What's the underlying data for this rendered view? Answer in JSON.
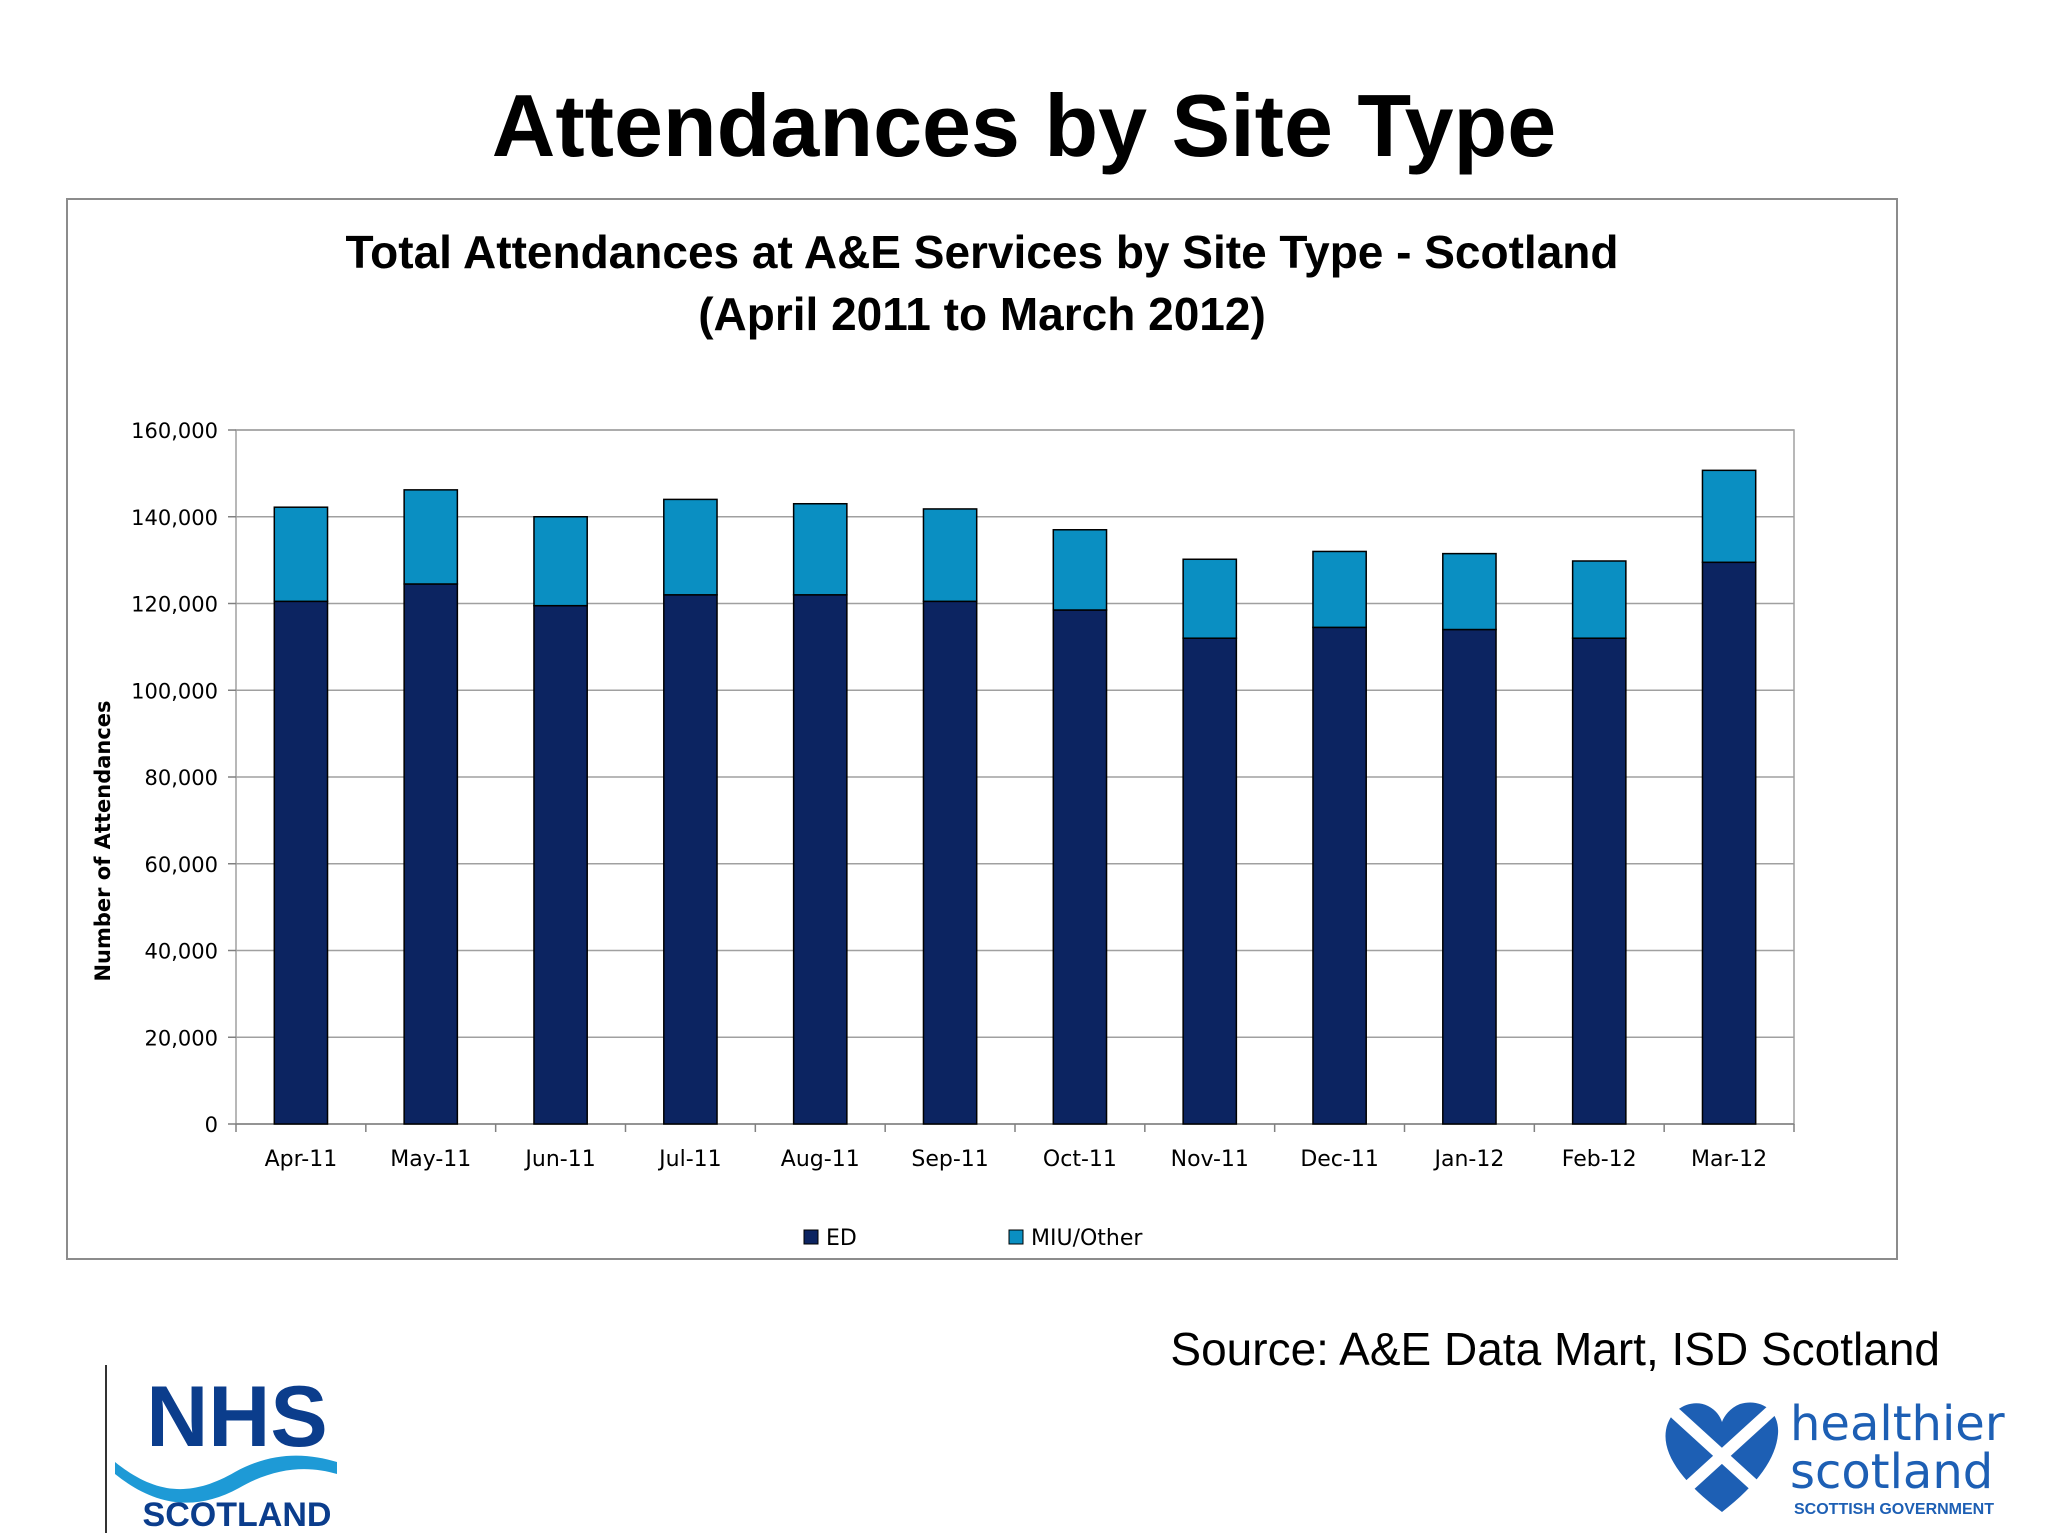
{
  "slide": {
    "title": "Attendances by Site Type",
    "source": "Source:  A&E Data Mart, ISD Scotland"
  },
  "logos": {
    "nhs": {
      "main": "NHS",
      "sub": "SCOTLAND"
    },
    "healthier_scotland": {
      "line1": "healthier",
      "line2": "scotland",
      "line3": "SCOTTISH GOVERNMENT"
    }
  },
  "colors": {
    "ed": "#0c2461",
    "miu": "#0a8fc2",
    "grid": "#a0a0a0",
    "nhs_blue": "#0b3d8c",
    "nhs_wave": "#1e9ad6",
    "hs_blue": "#1d5fb4"
  },
  "chart_data": {
    "type": "bar",
    "stacked": true,
    "title_lines": [
      "Total Attendances at A&E Services by Site Type - Scotland",
      "(April 2011 to March 2012)"
    ],
    "xlabel": "",
    "ylabel": "Number of Attendances",
    "ylim": [
      0,
      160000
    ],
    "yticks": [
      0,
      20000,
      40000,
      60000,
      80000,
      100000,
      120000,
      140000,
      160000
    ],
    "ytick_labels": [
      "0",
      "20,000",
      "40,000",
      "60,000",
      "80,000",
      "100,000",
      "120,000",
      "140,000",
      "160,000"
    ],
    "grid": true,
    "legend_position": "bottom",
    "categories": [
      "Apr-11",
      "May-11",
      "Jun-11",
      "Jul-11",
      "Aug-11",
      "Sep-11",
      "Oct-11",
      "Nov-11",
      "Dec-11",
      "Jan-12",
      "Feb-12",
      "Mar-12"
    ],
    "series": [
      {
        "name": "ED",
        "values": [
          120500,
          124500,
          119500,
          122000,
          122000,
          120500,
          118500,
          112000,
          114500,
          114000,
          112000,
          129500
        ]
      },
      {
        "name": "MIU/Other",
        "values": [
          21700,
          21700,
          20500,
          22000,
          21000,
          21300,
          18500,
          18200,
          17500,
          17500,
          17800,
          21200
        ]
      }
    ]
  }
}
